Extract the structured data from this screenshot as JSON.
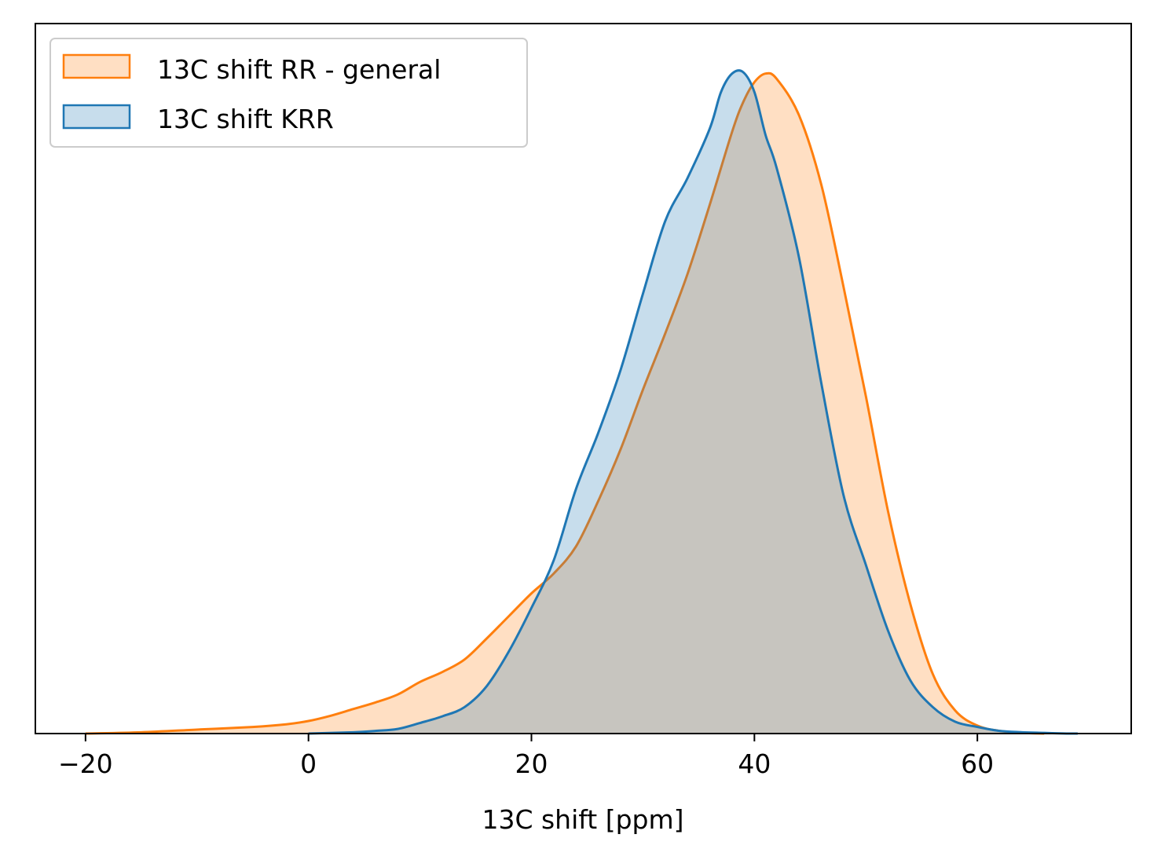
{
  "chart_data": {
    "type": "area",
    "xlabel": "13C shift [ppm]",
    "ylabel": "",
    "xlim": [
      -24.5,
      73.8
    ],
    "ylim": [
      0,
      1.0
    ],
    "x_ticks": [
      -20,
      0,
      20,
      40,
      60
    ],
    "x_tick_labels": [
      "−20",
      "0",
      "20",
      "40",
      "60"
    ],
    "y_ticks_shown": false,
    "legend_position": "top-left",
    "series": [
      {
        "name": "13C shift RR - general",
        "color": "#ff7f0e",
        "x": [
          -20,
          -15,
          -10,
          -5,
          -2,
          0,
          2,
          4,
          6,
          8,
          10,
          12,
          14,
          16,
          18,
          20,
          22,
          24,
          26,
          28,
          30,
          32,
          34,
          36,
          38,
          39,
          40,
          41,
          42,
          44,
          46,
          48,
          50,
          52,
          54,
          56,
          58,
          60,
          62,
          64,
          66
        ],
        "y": [
          0.0,
          0.002,
          0.006,
          0.01,
          0.014,
          0.019,
          0.027,
          0.037,
          0.047,
          0.059,
          0.078,
          0.093,
          0.112,
          0.144,
          0.178,
          0.212,
          0.242,
          0.283,
          0.352,
          0.43,
          0.52,
          0.605,
          0.695,
          0.8,
          0.91,
          0.955,
          0.985,
          0.998,
          0.99,
          0.935,
          0.83,
          0.675,
          0.51,
          0.335,
          0.195,
          0.09,
          0.035,
          0.012,
          0.004,
          0.001,
          0.0
        ]
      },
      {
        "name": "13C shift KRR",
        "color": "#1f77b4",
        "x": [
          0,
          4,
          6,
          8,
          10,
          12,
          14,
          16,
          18,
          20,
          22,
          24,
          26,
          28,
          30,
          32,
          34,
          36,
          37,
          38,
          39,
          40,
          41,
          42,
          44,
          46,
          48,
          50,
          52,
          54,
          56,
          58,
          60,
          62,
          64,
          66,
          68,
          69
        ],
        "y": [
          0.0,
          0.002,
          0.004,
          0.007,
          0.016,
          0.026,
          0.04,
          0.072,
          0.125,
          0.19,
          0.262,
          0.37,
          0.455,
          0.55,
          0.665,
          0.775,
          0.84,
          0.915,
          0.97,
          0.998,
          1.0,
          0.97,
          0.905,
          0.855,
          0.72,
          0.53,
          0.36,
          0.255,
          0.155,
          0.08,
          0.04,
          0.018,
          0.01,
          0.004,
          0.002,
          0.001,
          0.0,
          0.0
        ]
      }
    ]
  }
}
